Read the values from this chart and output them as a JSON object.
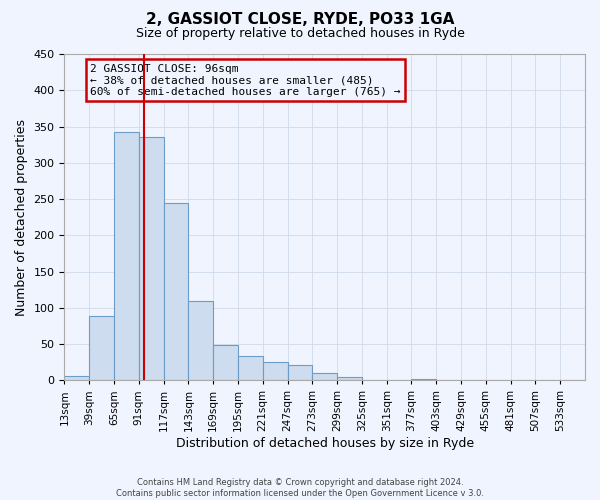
{
  "title": "2, GASSIOT CLOSE, RYDE, PO33 1GA",
  "subtitle": "Size of property relative to detached houses in Ryde",
  "xlabel": "Distribution of detached houses by size in Ryde",
  "ylabel": "Number of detached properties",
  "footer_line1": "Contains HM Land Registry data © Crown copyright and database right 2024.",
  "footer_line2": "Contains public sector information licensed under the Open Government Licence v 3.0.",
  "bar_color": "#cddcee",
  "bar_edge_color": "#6b9dc8",
  "grid_color": "#d0daea",
  "vline_color": "#cc0000",
  "vline_x": 96,
  "annotation_title": "2 GASSIOT CLOSE: 96sqm",
  "annotation_line2": "← 38% of detached houses are smaller (485)",
  "annotation_line3": "60% of semi-detached houses are larger (765) →",
  "annotation_box_color": "#cc0000",
  "bin_edges": [
    13,
    39,
    65,
    91,
    117,
    143,
    169,
    195,
    221,
    247,
    273,
    299,
    325,
    351,
    377,
    403,
    429,
    455,
    481,
    507,
    533,
    559
  ],
  "bin_values": [
    6,
    88,
    342,
    335,
    245,
    110,
    49,
    33,
    25,
    21,
    10,
    4,
    1,
    0,
    2,
    1,
    0,
    0,
    0,
    0,
    1
  ],
  "ylim": [
    0,
    450
  ],
  "yticks": [
    0,
    50,
    100,
    150,
    200,
    250,
    300,
    350,
    400,
    450
  ],
  "background_color": "#f0f4ff"
}
